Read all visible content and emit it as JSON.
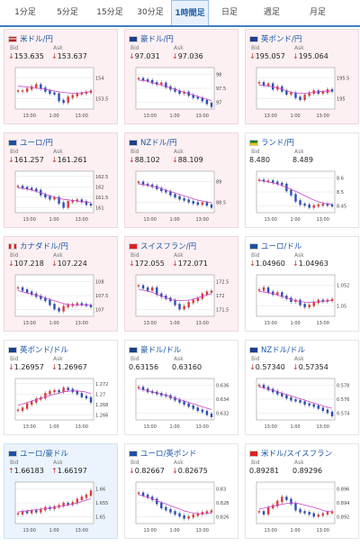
{
  "tabs": [
    "1分足",
    "5分足",
    "15分足",
    "30分足",
    "1時間足",
    "日足",
    "週足",
    "月足"
  ],
  "active_tab": 4,
  "labels": {
    "bid": "Bid",
    "ask": "Ask"
  },
  "cards": [
    {
      "title": "米ドル/円",
      "flag": "us",
      "bid": "153.635",
      "ask": "153.637",
      "bid_dir": "down",
      "ask_dir": "down",
      "yticks": [
        "154",
        "153.5"
      ],
      "xticks": [
        "13:00",
        "1:00",
        "13:00"
      ],
      "bg": "pink",
      "series": [
        0.55,
        0.55,
        0.5,
        0.45,
        0.4,
        0.48,
        0.55,
        0.6,
        0.62,
        0.78,
        0.82,
        0.7,
        0.66,
        0.62,
        0.6,
        0.58,
        0.55
      ],
      "ma": [
        0.45,
        0.46,
        0.48,
        0.5,
        0.52,
        0.55,
        0.58,
        0.6,
        0.62,
        0.62,
        0.6,
        0.58
      ]
    },
    {
      "title": "豪ドル/円",
      "flag": "au",
      "bid": "97.031",
      "ask": "97.036",
      "bid_dir": "down",
      "ask_dir": "down",
      "yticks": [
        "98",
        "97.5",
        "97"
      ],
      "xticks": [
        "13:00",
        "1:00",
        "13:00"
      ],
      "bg": "pink",
      "series": [
        0.25,
        0.28,
        0.3,
        0.35,
        0.38,
        0.36,
        0.45,
        0.5,
        0.55,
        0.6,
        0.58,
        0.65,
        0.7,
        0.72,
        0.78,
        0.85,
        0.92
      ],
      "ma": [
        0.3,
        0.32,
        0.36,
        0.4,
        0.45,
        0.5,
        0.55,
        0.6,
        0.65,
        0.7,
        0.75,
        0.8
      ]
    },
    {
      "title": "英ポンド/円",
      "flag": "gb",
      "bid": "195.057",
      "ask": "195.064",
      "bid_dir": "down",
      "ask_dir": "down",
      "yticks": [
        "195.5",
        "195"
      ],
      "xticks": [
        "13:00",
        "1:00",
        "13:00"
      ],
      "bg": "pink",
      "series": [
        0.35,
        0.4,
        0.38,
        0.5,
        0.45,
        0.55,
        0.62,
        0.6,
        0.7,
        0.75,
        0.65,
        0.6,
        0.55,
        0.6,
        0.58,
        0.52,
        0.55
      ],
      "ma": [
        0.42,
        0.44,
        0.46,
        0.5,
        0.55,
        0.6,
        0.62,
        0.62,
        0.6,
        0.58,
        0.57,
        0.56
      ]
    },
    {
      "title": "ユーロ/円",
      "flag": "eu",
      "bid": "161.257",
      "ask": "161.261",
      "bid_dir": "down",
      "ask_dir": "down",
      "yticks": [
        "162.5",
        "162",
        "161.5",
        "161"
      ],
      "xticks": [
        "13:00",
        "1:00",
        "13:00"
      ],
      "bg": "pink",
      "series": [
        0.35,
        0.38,
        0.4,
        0.42,
        0.45,
        0.55,
        0.6,
        0.65,
        0.62,
        0.75,
        0.85,
        0.72,
        0.7,
        0.68,
        0.72,
        0.78,
        0.8
      ],
      "ma": [
        0.4,
        0.42,
        0.45,
        0.5,
        0.55,
        0.6,
        0.65,
        0.68,
        0.7,
        0.72,
        0.74,
        0.75
      ]
    },
    {
      "title": "NZドル/円",
      "flag": "nz",
      "bid": "88.102",
      "ask": "88.109",
      "bid_dir": "down",
      "ask_dir": "down",
      "yticks": [
        "89",
        "88.5"
      ],
      "xticks": [
        "13:00",
        "1:00",
        "13:00"
      ],
      "bg": "pink",
      "series": [
        0.25,
        0.3,
        0.32,
        0.35,
        0.4,
        0.45,
        0.48,
        0.55,
        0.6,
        0.65,
        0.68,
        0.72,
        0.75,
        0.78,
        0.75,
        0.8,
        0.85
      ],
      "ma": [
        0.3,
        0.33,
        0.36,
        0.4,
        0.45,
        0.5,
        0.55,
        0.6,
        0.65,
        0.7,
        0.73,
        0.76
      ]
    },
    {
      "title": "ランド/円",
      "flag": "za",
      "bid": "8.480",
      "ask": "8.489",
      "bid_dir": "none",
      "ask_dir": "none",
      "yticks": [
        "8.6",
        "8.5",
        "8.45"
      ],
      "xticks": [
        "13:00",
        "1:00",
        "13:00"
      ],
      "bg": "white",
      "series": [
        0.2,
        0.22,
        0.22,
        0.25,
        0.28,
        0.3,
        0.45,
        0.55,
        0.7,
        0.78,
        0.8,
        0.85,
        0.82,
        0.8,
        0.78,
        0.8,
        0.82
      ],
      "ma": [
        0.22,
        0.25,
        0.28,
        0.32,
        0.38,
        0.45,
        0.52,
        0.6,
        0.68,
        0.74,
        0.78,
        0.8
      ]
    },
    {
      "title": "カナダドル/円",
      "flag": "ca",
      "bid": "107.218",
      "ask": "107.224",
      "bid_dir": "down",
      "ask_dir": "down",
      "yticks": [
        "108",
        "107.5",
        "107"
      ],
      "xticks": [
        "13:00",
        "1:00",
        "13:00"
      ],
      "bg": "pink",
      "series": [
        0.3,
        0.35,
        0.4,
        0.45,
        0.5,
        0.55,
        0.6,
        0.7,
        0.8,
        0.85,
        0.75,
        0.72,
        0.7,
        0.68,
        0.7,
        0.72,
        0.75
      ],
      "ma": [
        0.38,
        0.42,
        0.46,
        0.5,
        0.55,
        0.6,
        0.65,
        0.7,
        0.72,
        0.73,
        0.73,
        0.72
      ]
    },
    {
      "title": "スイスフラン/円",
      "flag": "ch",
      "bid": "172.055",
      "ask": "172.071",
      "bid_dir": "down",
      "ask_dir": "down",
      "yticks": [
        "172.5",
        "172",
        "171.5"
      ],
      "xticks": [
        "13:00",
        "1:00",
        "13:00"
      ],
      "bg": "pink",
      "series": [
        0.25,
        0.3,
        0.35,
        0.3,
        0.45,
        0.5,
        0.55,
        0.6,
        0.7,
        0.8,
        0.75,
        0.65,
        0.6,
        0.55,
        0.45,
        0.4,
        0.38
      ],
      "ma": [
        0.35,
        0.38,
        0.42,
        0.48,
        0.55,
        0.6,
        0.62,
        0.62,
        0.6,
        0.55,
        0.5,
        0.45
      ]
    },
    {
      "title": "ユーロ/ドル",
      "flag": "eu",
      "bid": "1.04960",
      "ask": "1.04963",
      "bid_dir": "down",
      "ask_dir": "down",
      "yticks": [
        "1.052",
        "1.05"
      ],
      "xticks": [
        "13:00",
        "1:00",
        "13:00"
      ],
      "bg": "white",
      "series": [
        0.35,
        0.3,
        0.4,
        0.45,
        0.42,
        0.5,
        0.55,
        0.62,
        0.6,
        0.7,
        0.75,
        0.72,
        0.65,
        0.6,
        0.62,
        0.6,
        0.58
      ],
      "ma": [
        0.4,
        0.42,
        0.45,
        0.5,
        0.55,
        0.6,
        0.64,
        0.66,
        0.66,
        0.65,
        0.63,
        0.62
      ]
    },
    {
      "title": "英ポンド/ドル",
      "flag": "gb",
      "bid": "1.26957",
      "ask": "1.26967",
      "bid_dir": "down",
      "ask_dir": "down",
      "yticks": [
        "1.272",
        "1.27",
        "1.268",
        "1.266"
      ],
      "xticks": [
        "13:00",
        "1:00",
        "13:00"
      ],
      "bg": "white",
      "series": [
        0.75,
        0.7,
        0.6,
        0.55,
        0.48,
        0.45,
        0.35,
        0.3,
        0.28,
        0.3,
        0.22,
        0.25,
        0.3,
        0.35,
        0.42,
        0.45,
        0.55
      ],
      "ma": [
        0.65,
        0.6,
        0.55,
        0.5,
        0.45,
        0.4,
        0.36,
        0.32,
        0.3,
        0.3,
        0.32,
        0.36
      ]
    },
    {
      "title": "豪ドル/ドル",
      "flag": "au",
      "bid": "0.63156",
      "ask": "0.63160",
      "bid_dir": "none",
      "ask_dir": "none",
      "yticks": [
        "0.636",
        "0.634",
        "0.632"
      ],
      "xticks": [
        "13:00",
        "1:00",
        "13:00"
      ],
      "bg": "white",
      "series": [
        0.2,
        0.25,
        0.3,
        0.32,
        0.35,
        0.38,
        0.4,
        0.45,
        0.5,
        0.55,
        0.6,
        0.65,
        0.7,
        0.75,
        0.78,
        0.85,
        0.9
      ],
      "ma": [
        0.25,
        0.28,
        0.32,
        0.36,
        0.4,
        0.45,
        0.5,
        0.55,
        0.6,
        0.65,
        0.7,
        0.75
      ]
    },
    {
      "title": "NZドル/ドル",
      "flag": "nz",
      "bid": "0.57340",
      "ask": "0.57354",
      "bid_dir": "down",
      "ask_dir": "down",
      "yticks": [
        "0.578",
        "0.576",
        "0.574"
      ],
      "xticks": [
        "13:00",
        "1:00",
        "13:00"
      ],
      "bg": "white",
      "series": [
        0.15,
        0.2,
        0.25,
        0.3,
        0.35,
        0.4,
        0.45,
        0.5,
        0.52,
        0.55,
        0.6,
        0.62,
        0.65,
        0.7,
        0.75,
        0.8,
        0.88
      ],
      "ma": [
        0.2,
        0.24,
        0.28,
        0.33,
        0.38,
        0.43,
        0.48,
        0.53,
        0.58,
        0.63,
        0.68,
        0.72
      ]
    },
    {
      "title": "ユーロ/豪ドル",
      "flag": "eu",
      "bid": "1.66183",
      "ask": "1.66197",
      "bid_dir": "up",
      "ask_dir": "up",
      "yticks": [
        "1.66",
        "1.655",
        "1.65"
      ],
      "xticks": [
        "13:00",
        "1:00",
        "13:00"
      ],
      "bg": "blue",
      "series": [
        0.75,
        0.7,
        0.72,
        0.68,
        0.7,
        0.65,
        0.6,
        0.62,
        0.58,
        0.55,
        0.5,
        0.52,
        0.48,
        0.4,
        0.35,
        0.3,
        0.2
      ],
      "ma": [
        0.72,
        0.7,
        0.68,
        0.66,
        0.64,
        0.62,
        0.6,
        0.57,
        0.54,
        0.5,
        0.45,
        0.4
      ]
    },
    {
      "title": "ユーロ/英ポンド",
      "flag": "eu",
      "bid": "0.82667",
      "ask": "0.82675",
      "bid_dir": "down",
      "ask_dir": "down",
      "yticks": [
        "0.83",
        "0.828",
        "0.826"
      ],
      "xticks": [
        "13:00",
        "1:00",
        "13:00"
      ],
      "bg": "white",
      "series": [
        0.25,
        0.3,
        0.35,
        0.4,
        0.5,
        0.6,
        0.65,
        0.7,
        0.75,
        0.8,
        0.85,
        0.82,
        0.78,
        0.75,
        0.72,
        0.7,
        0.68
      ],
      "ma": [
        0.3,
        0.35,
        0.4,
        0.46,
        0.52,
        0.58,
        0.64,
        0.7,
        0.74,
        0.76,
        0.76,
        0.74
      ]
    },
    {
      "title": "米ドル/スイスフラン",
      "flag": "ch",
      "bid": "0.89281",
      "ask": "0.89296",
      "bid_dir": "none",
      "ask_dir": "none",
      "yticks": [
        "0.896",
        "0.894",
        "0.892"
      ],
      "xticks": [
        "13:00",
        "1:00",
        "13:00"
      ],
      "bg": "white",
      "series": [
        0.7,
        0.75,
        0.6,
        0.55,
        0.45,
        0.35,
        0.4,
        0.5,
        0.65,
        0.7,
        0.72,
        0.75,
        0.8,
        0.78,
        0.75,
        0.72,
        0.7
      ],
      "ma": [
        0.65,
        0.62,
        0.58,
        0.55,
        0.52,
        0.5,
        0.52,
        0.56,
        0.6,
        0.65,
        0.7,
        0.72
      ]
    }
  ]
}
